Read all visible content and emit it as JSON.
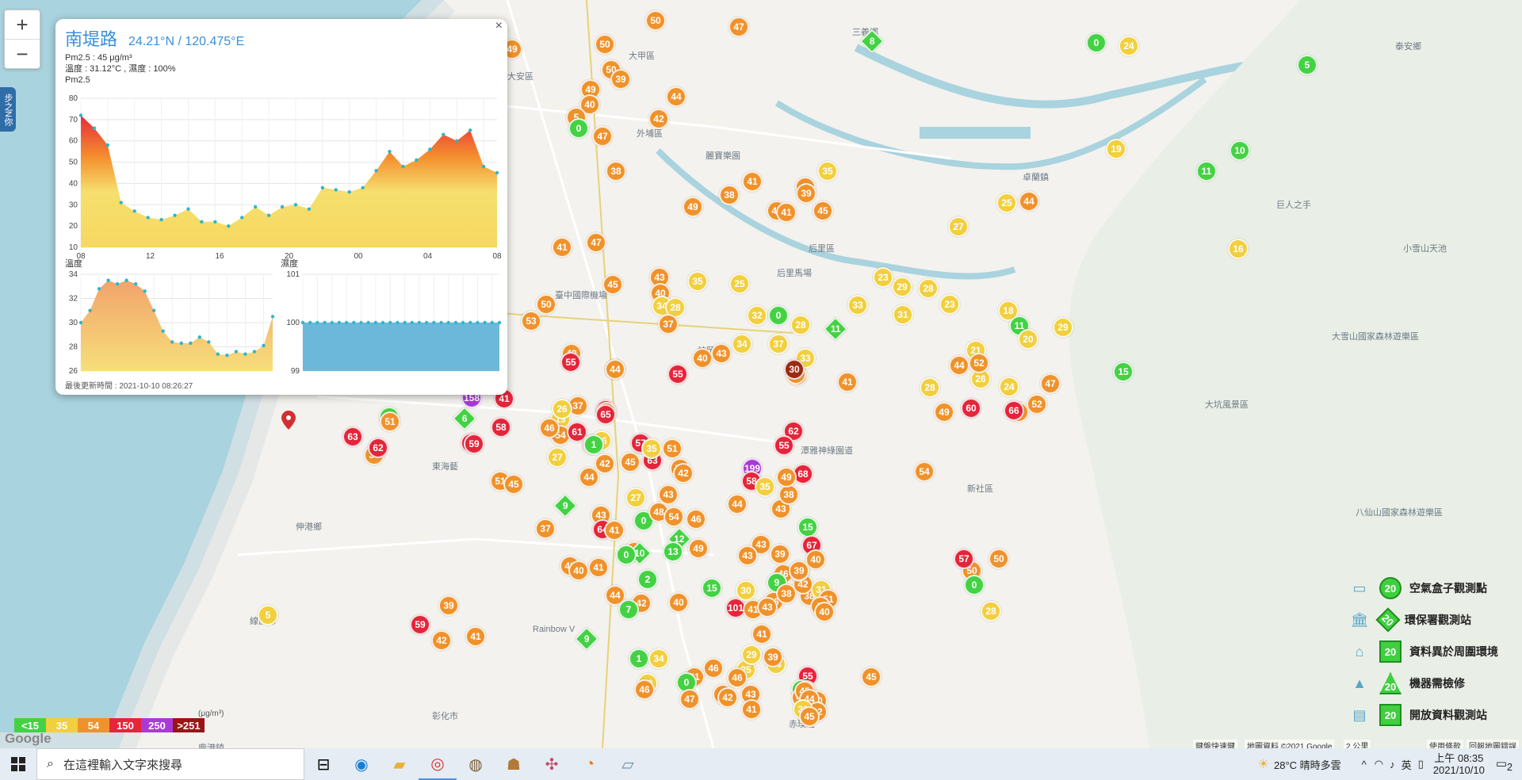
{
  "map": {
    "zoom_in": "+",
    "zoom_out": "−",
    "side_tab": "步之N你",
    "place_labels": [
      {
        "t": "三義鄉"
      },
      {
        "t": "大甲區"
      },
      {
        "t": "大安區"
      },
      {
        "t": "外埔區"
      },
      {
        "t": "后里區"
      },
      {
        "t": "卓蘭鎮"
      },
      {
        "t": "泰安鄉"
      },
      {
        "t": "麗寶樂園"
      },
      {
        "t": "巨人之手"
      },
      {
        "t": "小雪山天池"
      },
      {
        "t": "后里馬場"
      },
      {
        "t": "臺中國際機場"
      },
      {
        "t": "神岡區"
      },
      {
        "t": "潭雅神綠園道"
      },
      {
        "t": "大坑風景區"
      },
      {
        "t": "新社區"
      },
      {
        "t": "大雪山國家森林遊樂區"
      },
      {
        "t": "八仙山國家森林遊樂區"
      },
      {
        "t": "伸港鄉"
      },
      {
        "t": "線西鄉"
      },
      {
        "t": "彰化市"
      },
      {
        "t": "鹿港鎮"
      },
      {
        "t": "Rainbow V"
      },
      {
        "t": "赤璞班"
      },
      {
        "t": "東海藝"
      }
    ],
    "markers": [
      {
        "v": "50",
        "c": "#f0922b"
      },
      {
        "v": "47",
        "c": "#f0922b"
      },
      {
        "v": "8",
        "c": "#44d244",
        "s": "dia"
      },
      {
        "v": "0",
        "c": "#44d244"
      },
      {
        "v": "24",
        "c": "#f2cf3e"
      },
      {
        "v": "49",
        "c": "#f0922b"
      },
      {
        "v": "50",
        "c": "#f0922b"
      },
      {
        "v": "50",
        "c": "#f0922b"
      },
      {
        "v": "39",
        "c": "#f0922b"
      },
      {
        "v": "5",
        "c": "#44d244"
      },
      {
        "v": "49",
        "c": "#f0922b"
      },
      {
        "v": "40",
        "c": "#f0922b"
      },
      {
        "v": "44",
        "c": "#f0922b"
      },
      {
        "v": "5",
        "c": "#f0922b"
      },
      {
        "v": "0",
        "c": "#44d244"
      },
      {
        "v": "47",
        "c": "#f0922b"
      },
      {
        "v": "42",
        "c": "#f0922b"
      },
      {
        "v": "19",
        "c": "#f2cf3e"
      },
      {
        "v": "10",
        "c": "#44d244"
      },
      {
        "v": "11",
        "c": "#44d244"
      },
      {
        "v": "38",
        "c": "#f0922b"
      },
      {
        "v": "35",
        "c": "#f2cf3e"
      },
      {
        "v": "41",
        "c": "#f0922b"
      },
      {
        "v": "42",
        "c": "#f0922b"
      },
      {
        "v": "38",
        "c": "#f0922b"
      },
      {
        "v": "39",
        "c": "#f0922b"
      },
      {
        "v": "49",
        "c": "#f0922b"
      },
      {
        "v": "47",
        "c": "#f0922b"
      },
      {
        "v": "45",
        "c": "#f0922b"
      },
      {
        "v": "41",
        "c": "#f0922b"
      },
      {
        "v": "25",
        "c": "#f2cf3e"
      },
      {
        "v": "44",
        "c": "#f0922b"
      },
      {
        "v": "27",
        "c": "#f2cf3e"
      },
      {
        "v": "47",
        "c": "#f0922b"
      },
      {
        "v": "41",
        "c": "#f0922b"
      },
      {
        "v": "16",
        "c": "#f2cf3e"
      },
      {
        "v": "43",
        "c": "#f0922b"
      },
      {
        "v": "35",
        "c": "#f2cf3e"
      },
      {
        "v": "25",
        "c": "#f2cf3e"
      },
      {
        "v": "23",
        "c": "#f2cf3e"
      },
      {
        "v": "29",
        "c": "#f2cf3e"
      },
      {
        "v": "28",
        "c": "#f2cf3e"
      },
      {
        "v": "23",
        "c": "#f2cf3e"
      },
      {
        "v": "45",
        "c": "#f0922b"
      },
      {
        "v": "40",
        "c": "#f0922b"
      },
      {
        "v": "34",
        "c": "#f2cf3e"
      },
      {
        "v": "28",
        "c": "#f2cf3e"
      },
      {
        "v": "50",
        "c": "#f0922b"
      },
      {
        "v": "32",
        "c": "#f2cf3e"
      },
      {
        "v": "0",
        "c": "#44d244"
      },
      {
        "v": "28",
        "c": "#f2cf3e"
      },
      {
        "v": "33",
        "c": "#f2cf3e"
      },
      {
        "v": "31",
        "c": "#f2cf3e"
      },
      {
        "v": "18",
        "c": "#f2cf3e"
      },
      {
        "v": "29",
        "c": "#f2cf3e"
      },
      {
        "v": "53",
        "c": "#f0922b"
      },
      {
        "v": "37",
        "c": "#f0922b"
      },
      {
        "v": "11",
        "c": "#44d244",
        "s": "dia"
      },
      {
        "v": "11",
        "c": "#44d244"
      },
      {
        "v": "20",
        "c": "#f2cf3e"
      },
      {
        "v": "34",
        "c": "#f2cf3e"
      },
      {
        "v": "37",
        "c": "#f2cf3e"
      },
      {
        "v": "49",
        "c": "#f0922b"
      },
      {
        "v": "55",
        "c": "#e5253a"
      },
      {
        "v": "40",
        "c": "#f0922b"
      },
      {
        "v": "43",
        "c": "#f0922b"
      },
      {
        "v": "33",
        "c": "#f2cf3e"
      },
      {
        "v": "38",
        "c": "#f0922b"
      },
      {
        "v": "21",
        "c": "#f2cf3e"
      },
      {
        "v": "15",
        "c": "#44d244"
      },
      {
        "v": "44",
        "c": "#f0922b"
      },
      {
        "v": "55",
        "c": "#e5253a"
      },
      {
        "v": "44",
        "c": "#f0922b"
      },
      {
        "v": "36",
        "c": "#f0922b"
      },
      {
        "v": "30",
        "c": "#9b2b14"
      },
      {
        "v": "28",
        "c": "#f2cf3e"
      },
      {
        "v": "24",
        "c": "#f2cf3e"
      },
      {
        "v": "26",
        "c": "#f2cf3e"
      },
      {
        "v": "52",
        "c": "#f0922b"
      },
      {
        "v": "44",
        "c": "#f0922b"
      },
      {
        "v": "1",
        "c": "#44d244"
      },
      {
        "v": "51",
        "c": "#f0922b"
      },
      {
        "v": "6",
        "c": "#44d244",
        "s": "dia"
      },
      {
        "v": "158",
        "c": "#a93ad6"
      },
      {
        "v": "41",
        "c": "#e5253a"
      },
      {
        "v": "57",
        "c": "#e5253a"
      },
      {
        "v": "43",
        "c": "#f0922b"
      },
      {
        "v": "37",
        "c": "#f0922b"
      },
      {
        "v": "19",
        "c": "#f2cf3e"
      },
      {
        "v": "26",
        "c": "#f2cf3e"
      },
      {
        "v": "54",
        "c": "#f0922b"
      },
      {
        "v": "61",
        "c": "#e5253a"
      },
      {
        "v": "65",
        "c": "#e5253a"
      },
      {
        "v": "41",
        "c": "#f0922b"
      },
      {
        "v": "40",
        "c": "#f0922b"
      },
      {
        "v": "66",
        "c": "#e5253a"
      },
      {
        "v": "52",
        "c": "#f0922b"
      },
      {
        "v": "47",
        "c": "#f0922b"
      },
      {
        "v": "49",
        "c": "#f0922b"
      },
      {
        "v": "63",
        "c": "#e5253a"
      },
      {
        "v": "38",
        "c": "#f0922b"
      },
      {
        "v": "62",
        "c": "#e5253a"
      },
      {
        "v": "65",
        "c": "#e5253a"
      },
      {
        "v": "58",
        "c": "#e5253a"
      },
      {
        "v": "59",
        "c": "#e5253a"
      },
      {
        "v": "62",
        "c": "#e5253a"
      },
      {
        "v": "64",
        "c": "#e5253a"
      },
      {
        "v": "57",
        "c": "#e5253a"
      },
      {
        "v": "63",
        "c": "#e5253a"
      },
      {
        "v": "51",
        "c": "#f0922b"
      },
      {
        "v": "60",
        "c": "#e5253a"
      },
      {
        "v": "54",
        "c": "#f0922b"
      },
      {
        "v": "62",
        "c": "#e5253a"
      },
      {
        "v": "46",
        "c": "#f0922b"
      },
      {
        "v": "44",
        "c": "#f0922b"
      },
      {
        "v": "26",
        "c": "#f2cf3e"
      },
      {
        "v": "42",
        "c": "#f0922b"
      },
      {
        "v": "51",
        "c": "#f0922b"
      },
      {
        "v": "45",
        "c": "#f0922b"
      },
      {
        "v": "27",
        "c": "#f2cf3e"
      },
      {
        "v": "1",
        "c": "#44d244"
      },
      {
        "v": "35",
        "c": "#f2cf3e"
      },
      {
        "v": "53",
        "c": "#f0922b"
      },
      {
        "v": "55",
        "c": "#e5253a"
      },
      {
        "v": "68",
        "c": "#e5253a"
      },
      {
        "v": "199",
        "c": "#a93ad6"
      },
      {
        "v": "58",
        "c": "#e5253a"
      },
      {
        "v": "50",
        "c": "#f0922b"
      },
      {
        "v": "0",
        "c": "#44d244"
      },
      {
        "v": "28",
        "c": "#f2cf3e"
      },
      {
        "v": "50",
        "c": "#f0922b"
      },
      {
        "v": "57",
        "c": "#e5253a"
      },
      {
        "v": "9",
        "c": "#44d244",
        "s": "dia"
      },
      {
        "v": "0",
        "c": "#44d244"
      },
      {
        "v": "52",
        "c": "#f0922b"
      },
      {
        "v": "48",
        "c": "#f0922b"
      },
      {
        "v": "43",
        "c": "#f0922b"
      },
      {
        "v": "42",
        "c": "#f0922b"
      },
      {
        "v": "27",
        "c": "#f2cf3e"
      },
      {
        "v": "45",
        "c": "#f0922b"
      },
      {
        "v": "43",
        "c": "#f0922b"
      },
      {
        "v": "64",
        "c": "#e5253a"
      },
      {
        "v": "54",
        "c": "#f0922b"
      },
      {
        "v": "12",
        "c": "#44d244",
        "s": "dia"
      },
      {
        "v": "46",
        "c": "#f0922b"
      },
      {
        "v": "44",
        "c": "#f0922b"
      },
      {
        "v": "43",
        "c": "#f0922b"
      },
      {
        "v": "38",
        "c": "#f0922b"
      },
      {
        "v": "35",
        "c": "#f2cf3e"
      },
      {
        "v": "15",
        "c": "#44d244"
      },
      {
        "v": "49",
        "c": "#f0922b"
      },
      {
        "v": "67",
        "c": "#e5253a"
      },
      {
        "v": "40",
        "c": "#f0922b"
      },
      {
        "v": "46",
        "c": "#f0922b"
      },
      {
        "v": "9",
        "c": "#44d244"
      },
      {
        "v": "38",
        "c": "#f0922b"
      },
      {
        "v": "31",
        "c": "#f2cf3e"
      },
      {
        "v": "51",
        "c": "#f0922b"
      },
      {
        "v": "45",
        "c": "#f0922b"
      },
      {
        "v": "42",
        "c": "#f0922b"
      },
      {
        "v": "47",
        "c": "#f0922b"
      },
      {
        "v": "40",
        "c": "#f0922b"
      },
      {
        "v": "41",
        "c": "#f0922b"
      },
      {
        "v": "37",
        "c": "#f0922b"
      },
      {
        "v": "10",
        "c": "#44d244",
        "s": "dia"
      },
      {
        "v": "13",
        "c": "#44d244"
      },
      {
        "v": "49",
        "c": "#f0922b"
      },
      {
        "v": "43",
        "c": "#f0922b"
      },
      {
        "v": "39",
        "c": "#f0922b"
      },
      {
        "v": "43",
        "c": "#f0922b"
      },
      {
        "v": "41",
        "c": "#f0922b"
      },
      {
        "v": "0",
        "c": "#44d244"
      },
      {
        "v": "40",
        "c": "#f0922b"
      },
      {
        "v": "44",
        "c": "#f0922b"
      },
      {
        "v": "2",
        "c": "#44d244"
      },
      {
        "v": "42",
        "c": "#f0922b"
      },
      {
        "v": "7",
        "c": "#44d244"
      },
      {
        "v": "40",
        "c": "#f0922b"
      },
      {
        "v": "101",
        "c": "#e5253a"
      },
      {
        "v": "43",
        "c": "#f0922b"
      },
      {
        "v": "46",
        "c": "#f0922b"
      },
      {
        "v": "39",
        "c": "#f0922b"
      },
      {
        "v": "38",
        "c": "#f0922b"
      },
      {
        "v": "41",
        "c": "#f0922b"
      },
      {
        "v": "30",
        "c": "#f2cf3e"
      },
      {
        "v": "15",
        "c": "#44d244"
      },
      {
        "v": "43",
        "c": "#f0922b"
      },
      {
        "v": "41",
        "c": "#f0922b"
      },
      {
        "v": "5",
        "c": "#f2cf3e"
      },
      {
        "v": "41",
        "c": "#f0922b"
      },
      {
        "v": "39",
        "c": "#f0922b"
      },
      {
        "v": "59",
        "c": "#e5253a"
      },
      {
        "v": "42",
        "c": "#f0922b"
      },
      {
        "v": "9",
        "c": "#44d244",
        "s": "dia"
      },
      {
        "v": "1",
        "c": "#44d244"
      },
      {
        "v": "34",
        "c": "#f2cf3e"
      },
      {
        "v": "46",
        "c": "#f0922b"
      },
      {
        "v": "41",
        "c": "#f0922b"
      },
      {
        "v": "35",
        "c": "#f2cf3e"
      },
      {
        "v": "26",
        "c": "#f2cf3e"
      },
      {
        "v": "29",
        "c": "#f2cf3e"
      },
      {
        "v": "46",
        "c": "#f0922b"
      },
      {
        "v": "39",
        "c": "#f0922b"
      },
      {
        "v": "29",
        "c": "#f2cf3e"
      },
      {
        "v": "0",
        "c": "#44d244"
      },
      {
        "v": "46",
        "c": "#f0922b"
      },
      {
        "v": "55",
        "c": "#e5253a"
      },
      {
        "v": "0",
        "c": "#44d244"
      },
      {
        "v": "44",
        "c": "#f0922b"
      },
      {
        "v": "43",
        "c": "#f0922b"
      },
      {
        "v": "40",
        "c": "#f0922b"
      },
      {
        "v": "45",
        "c": "#f0922b"
      },
      {
        "v": "50",
        "c": "#f0922b"
      },
      {
        "v": "48",
        "c": "#f0922b"
      },
      {
        "v": "33",
        "c": "#f2cf3e"
      },
      {
        "v": "52",
        "c": "#f0922b"
      },
      {
        "v": "45",
        "c": "#f0922b"
      },
      {
        "v": "44",
        "c": "#f0922b"
      },
      {
        "v": "43",
        "c": "#f0922b"
      },
      {
        "v": "41",
        "c": "#f0922b"
      },
      {
        "v": "42",
        "c": "#f0922b"
      },
      {
        "v": "28",
        "c": "#f2cf3e"
      },
      {
        "v": "45",
        "c": "#f0922b"
      },
      {
        "v": "47",
        "c": "#f0922b"
      },
      {
        "v": "42",
        "c": "#f0922b"
      }
    ]
  },
  "popup": {
    "title": "南堤路",
    "coord": "24.21°N / 120.475°E",
    "close": "×",
    "pm_line": "Pm2.5 : 45 μg/m³",
    "temp_line": "溫度 : 31.12°C , 濕度 : 100%",
    "pm_label": "Pm2.5",
    "temp_label": "溫度",
    "hum_label": "濕度",
    "updated": "最後更新時間 : 2021-10-10 08:26:27"
  },
  "chart_data": [
    {
      "type": "area",
      "x_ticks": [
        "08",
        "12",
        "16",
        "20",
        "00",
        "04",
        "08"
      ],
      "ylim": [
        10,
        80
      ],
      "y_ticks": [
        10,
        20,
        30,
        40,
        50,
        60,
        70,
        80
      ],
      "values": [
        72,
        66,
        58,
        31,
        27,
        24,
        23,
        25,
        28,
        22,
        22,
        20,
        24,
        29,
        25,
        29,
        30,
        28,
        38,
        37,
        36,
        38,
        46,
        55,
        48,
        51,
        56,
        63,
        60,
        65,
        48,
        45
      ]
    },
    {
      "type": "area",
      "ylim": [
        26,
        34
      ],
      "y_ticks": [
        26,
        28,
        30,
        32,
        34
      ],
      "values": [
        30,
        31,
        32.8,
        33.5,
        33.2,
        33.5,
        33.2,
        32.6,
        31,
        29.3,
        28.4,
        28.3,
        28.3,
        28.8,
        28.4,
        27.4,
        27.3,
        27.6,
        27.4,
        27.6,
        28.1,
        30.5
      ]
    },
    {
      "type": "area",
      "ylim": [
        99,
        101
      ],
      "y_ticks": [
        99,
        100,
        101
      ],
      "values": [
        100,
        100,
        100,
        100,
        100,
        100,
        100,
        100,
        100,
        100,
        100,
        100,
        100,
        100,
        100,
        100,
        100,
        100,
        100,
        100,
        100,
        100,
        100,
        100,
        100,
        100,
        100,
        100
      ]
    }
  ],
  "legend": {
    "unit": "(μg/m³)",
    "scale": [
      {
        "t": "<15",
        "c": "#44d244"
      },
      {
        "t": "35",
        "c": "#f2cf3e"
      },
      {
        "t": "54",
        "c": "#f0922b"
      },
      {
        "t": "150",
        "c": "#e5253a"
      },
      {
        "t": "250",
        "c": "#a93ad6"
      },
      {
        "t": ">251",
        "c": "#9b1414"
      }
    ],
    "google": "Google",
    "types": [
      {
        "icon": "box-icon",
        "glyph": "▭",
        "value": "20",
        "label": "空氣盒子觀測點",
        "shape": "circle"
      },
      {
        "icon": "govt-building-icon",
        "glyph": "🏛",
        "value": "20",
        "label": "環保署觀測站",
        "shape": "diamond"
      },
      {
        "icon": "house-icon",
        "glyph": "⌂",
        "value": "20",
        "label": "資料異於周圍環境",
        "shape": "square"
      },
      {
        "icon": "cone-icon",
        "glyph": "▲",
        "value": "20",
        "label": "機器需檢修",
        "shape": "triangle"
      },
      {
        "icon": "open-data-icon",
        "glyph": "▤",
        "value": "20",
        "label": "開放資料觀測站",
        "shape": "square"
      }
    ],
    "attrib": [
      "鍵盤快速鍵",
      "地圖資料 ©2021 Google",
      "2 公里",
      "使用條款",
      "回報地圖錯誤"
    ]
  },
  "taskbar": {
    "search_placeholder": "在這裡輸入文字來搜尋",
    "weather": "28°C 晴時多雲",
    "ime": "英",
    "time": "上午 08:35",
    "date": "2021/10/10",
    "notif": "2"
  }
}
